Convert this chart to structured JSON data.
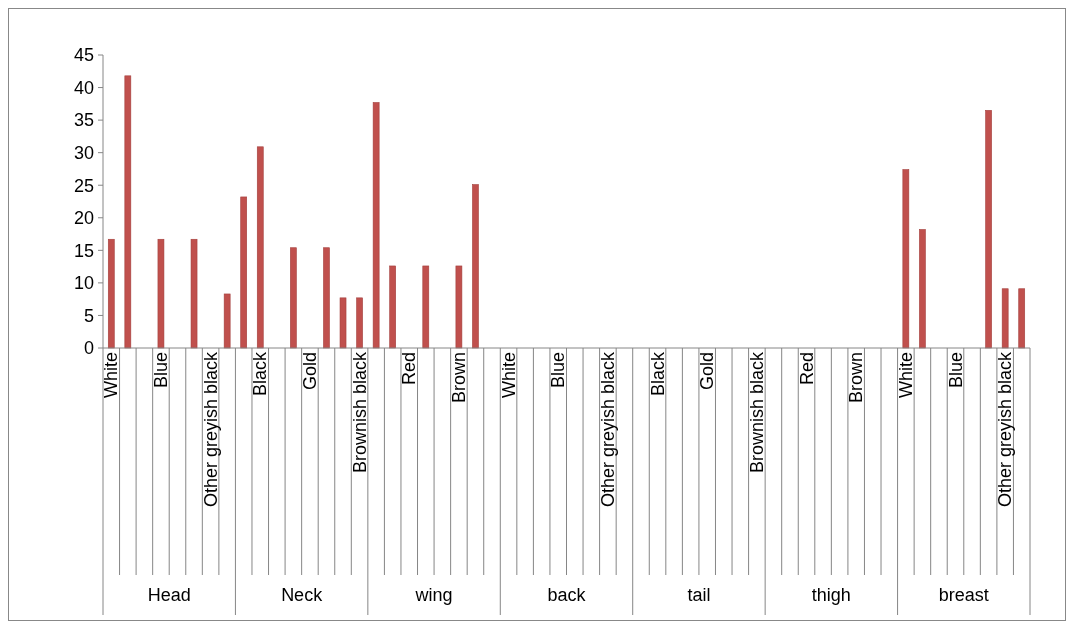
{
  "chart_data": {
    "type": "bar",
    "categories": [
      "White",
      null,
      null,
      "Blue",
      null,
      null,
      "Other greyish black",
      null,
      null,
      "Black",
      null,
      null,
      "Gold",
      null,
      null,
      "Brownish black",
      null,
      null,
      "Red",
      null,
      null,
      "Brown",
      null,
      null,
      "White",
      null,
      null,
      "Blue",
      null,
      null,
      "Other greyish black",
      null,
      null,
      "Black",
      null,
      null,
      "Gold",
      null,
      null,
      "Brownish black",
      null,
      null,
      "Red",
      null,
      null,
      "Brown",
      null,
      null,
      "White",
      null,
      null,
      "Blue",
      null,
      null,
      "Other greyish black",
      null
    ],
    "values": [
      16.7,
      41.8,
      0,
      16.7,
      0,
      16.7,
      0,
      8.3,
      23.2,
      30.9,
      0,
      15.4,
      0,
      15.4,
      7.7,
      7.7,
      37.7,
      12.6,
      0,
      12.6,
      0,
      12.6,
      25.1,
      0,
      0,
      0,
      0,
      0,
      0,
      0,
      0,
      0,
      0,
      0,
      0,
      0,
      0,
      0,
      0,
      0,
      0,
      0,
      0,
      0,
      0,
      0,
      0,
      0,
      27.4,
      18.2,
      0,
      0,
      0,
      36.5,
      9.1,
      9.1
    ],
    "color": "#c0504d",
    "annotations": [
      "Head",
      "Neck",
      "wing",
      "back",
      "tail",
      "thigh",
      "breast"
    ],
    "ylim": [
      0,
      45
    ],
    "yticks": [
      0,
      5,
      10,
      15,
      20,
      25,
      30,
      35,
      40,
      45
    ]
  }
}
